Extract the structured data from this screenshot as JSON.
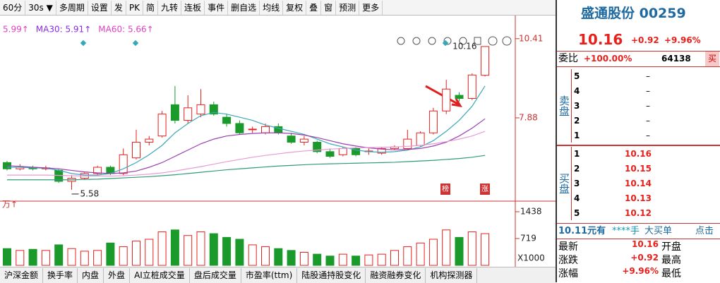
{
  "toolbar": {
    "period": "60分",
    "interval": "30s ▼",
    "items": [
      "多周期",
      "设置",
      "发",
      "PK",
      "简",
      "九转",
      "连板",
      "事件",
      "删自选",
      "均线",
      "复权",
      "叠",
      "窗",
      "预测",
      "更多"
    ]
  },
  "indicators": [
    {
      "text": "5.99↑",
      "color": "#e040c0"
    },
    {
      "text": "MA30: 5.91↑",
      "color": "#8a2be2"
    },
    {
      "text": "MA60: 5.66↑",
      "color": "#e040c0"
    }
  ],
  "chart_data": {
    "type": "candlestick",
    "open": [
      6.45,
      6.25,
      6.3,
      6.25,
      6.2,
      5.85,
      5.95,
      6.1,
      6.3,
      6.1,
      6.6,
      7.1,
      7.3,
      8.3,
      7.8,
      8.0,
      8.3,
      7.9,
      7.7,
      7.5,
      7.4,
      7.6,
      7.3,
      7.1,
      7.1,
      6.8,
      6.7,
      6.9,
      6.8,
      6.75,
      6.9,
      6.9,
      7.0,
      7.4,
      8.1,
      8.6,
      8.5,
      9.24
    ],
    "high": [
      6.5,
      6.4,
      6.35,
      6.35,
      6.25,
      6.05,
      6.15,
      6.35,
      6.35,
      6.9,
      7.5,
      7.3,
      8.1,
      8.9,
      8.6,
      8.8,
      8.4,
      8.0,
      7.8,
      7.6,
      7.7,
      7.7,
      7.4,
      7.3,
      7.15,
      6.9,
      6.95,
      6.95,
      6.9,
      6.95,
      7.0,
      7.5,
      7.45,
      8.2,
      9.1,
      8.7,
      9.3,
      10.16
    ],
    "low": [
      6.2,
      6.2,
      6.2,
      6.2,
      5.8,
      5.58,
      5.9,
      6.05,
      6.05,
      6.05,
      6.55,
      7.0,
      7.25,
      7.7,
      7.7,
      7.9,
      7.95,
      7.6,
      7.35,
      7.4,
      7.35,
      7.35,
      7.05,
      7.0,
      6.75,
      6.6,
      6.65,
      6.65,
      6.7,
      6.7,
      6.85,
      6.85,
      6.95,
      7.35,
      8.0,
      8.4,
      8.45,
      9.2
    ],
    "close": [
      6.25,
      6.3,
      6.25,
      6.28,
      5.85,
      5.95,
      6.1,
      6.3,
      6.1,
      6.7,
      7.1,
      7.2,
      8.0,
      7.8,
      8.2,
      8.3,
      8.0,
      7.7,
      7.4,
      7.52,
      7.6,
      7.4,
      7.1,
      7.2,
      6.8,
      6.65,
      6.9,
      6.7,
      6.82,
      6.9,
      6.95,
      7.2,
      7.4,
      8.1,
      8.8,
      8.5,
      9.25,
      10.16
    ],
    "volume": [
      450,
      400,
      430,
      400,
      550,
      450,
      380,
      400,
      600,
      500,
      650,
      700,
      900,
      950,
      800,
      900,
      850,
      750,
      700,
      550,
      500,
      450,
      400,
      350,
      300,
      250,
      300,
      250,
      280,
      300,
      400,
      500,
      600,
      700,
      950,
      750,
      900,
      850
    ],
    "lines": [
      {
        "color": "#3aa8b8",
        "values": [
          6.3,
          6.3,
          6.28,
          6.27,
          6.2,
          6.1,
          6.05,
          6.05,
          6.1,
          6.25,
          6.45,
          6.7,
          7.0,
          7.4,
          7.7,
          7.95,
          8.05,
          8.0,
          7.9,
          7.8,
          7.65,
          7.55,
          7.45,
          7.35,
          7.2,
          7.05,
          6.95,
          6.85,
          6.8,
          6.78,
          6.8,
          6.85,
          6.95,
          7.15,
          7.45,
          7.8,
          8.25,
          8.9
        ]
      },
      {
        "color": "#9b3fb0",
        "values": [
          6.35,
          6.33,
          6.3,
          6.28,
          6.25,
          6.2,
          6.15,
          6.12,
          6.1,
          6.12,
          6.18,
          6.3,
          6.45,
          6.65,
          6.85,
          7.05,
          7.2,
          7.3,
          7.35,
          7.38,
          7.4,
          7.4,
          7.38,
          7.33,
          7.25,
          7.15,
          7.05,
          6.98,
          6.92,
          6.88,
          6.86,
          6.87,
          6.9,
          6.98,
          7.1,
          7.3,
          7.55,
          7.85
        ]
      },
      {
        "color": "#e79bd6",
        "values": [
          6.05,
          6.05,
          6.05,
          6.05,
          6.04,
          6.03,
          6.02,
          6.02,
          6.02,
          6.03,
          6.05,
          6.08,
          6.12,
          6.18,
          6.25,
          6.32,
          6.4,
          6.48,
          6.55,
          6.62,
          6.68,
          6.73,
          6.78,
          6.82,
          6.85,
          6.88,
          6.9,
          6.92,
          6.93,
          6.94,
          6.95,
          6.97,
          7.0,
          7.05,
          7.12,
          7.2,
          7.3,
          7.45
        ]
      },
      {
        "color": "#2f9c78",
        "values": [
          5.9,
          5.9,
          5.9,
          5.9,
          5.9,
          5.9,
          5.91,
          5.92,
          5.94,
          5.96,
          5.98,
          6.0,
          6.03,
          6.06,
          6.1,
          6.14,
          6.18,
          6.22,
          6.25,
          6.28,
          6.31,
          6.34,
          6.36,
          6.38,
          6.4,
          6.41,
          6.42,
          6.43,
          6.44,
          6.45,
          6.46,
          6.48,
          6.5,
          6.52,
          6.55,
          6.58,
          6.62,
          6.68
        ]
      }
    ],
    "up_color": "#e8201c",
    "down_color": "#1a9a2a",
    "ylim": [
      5.33,
      10.79
    ],
    "yticks": [
      7.88,
      10.41
    ],
    "y2lim": [
      0,
      1627
    ],
    "y2ticks": [
      719,
      1438
    ],
    "volume_unit": "X1000",
    "volume_label": "万↑",
    "max_label": 10.16,
    "min_label": 5.58,
    "badges": [
      "榜",
      "涨"
    ]
  },
  "quote": {
    "name": "盛通股份 00259",
    "price": "10.16",
    "change": "+0.92",
    "pct": "+9.96%",
    "ratio_label": "委比",
    "ratio": "+100.00%",
    "ratio_vol": "64138",
    "buy_btn": "买",
    "sell_side": "卖盘",
    "buy_side": "买盘",
    "sell": [
      {
        "level": "5",
        "price": "–"
      },
      {
        "level": "4",
        "price": "–"
      },
      {
        "level": "3",
        "price": "–"
      },
      {
        "level": "2",
        "price": "–"
      },
      {
        "level": "1",
        "price": "–"
      }
    ],
    "buy": [
      {
        "level": "1",
        "price": "10.16"
      },
      {
        "level": "2",
        "price": "10.15"
      },
      {
        "level": "3",
        "price": "10.14"
      },
      {
        "level": "4",
        "price": "10.13"
      },
      {
        "level": "5",
        "price": "10.12"
      }
    ],
    "notice": [
      "10.11元有",
      "****手",
      "大买单",
      "点击"
    ],
    "stats": [
      [
        "最新",
        "10.16",
        "开盘"
      ],
      [
        "涨跌",
        "+0.92",
        "最高"
      ],
      [
        "涨幅",
        "+9.96%",
        "最低"
      ]
    ]
  },
  "tabs": [
    "沪深金额",
    "换手率",
    "内盘",
    "外盘",
    "AI立桩成交量",
    "盘后成交量",
    "市盈率(ttm)",
    "陆股通持股变化",
    "融资融券变化",
    "机构探测器"
  ]
}
